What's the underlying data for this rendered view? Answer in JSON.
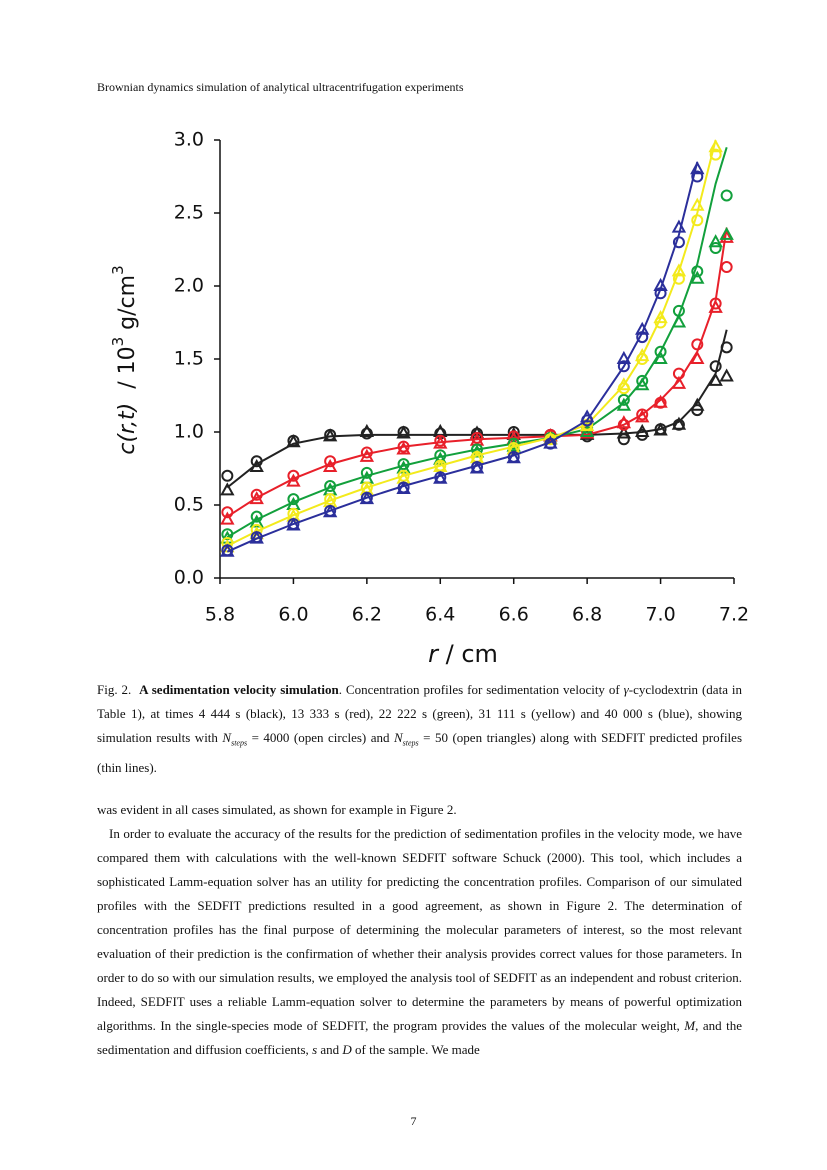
{
  "header": "Brownian dynamics simulation of analytical ultracentrifugation experiments",
  "chart_data": {
    "type": "line",
    "x_label": [
      "r",
      " / cm"
    ],
    "y_label": [
      "c(r,t)",
      "  / 10",
      "3",
      " g/cm",
      "3"
    ],
    "x": [
      5.82,
      5.9,
      6.0,
      6.1,
      6.2,
      6.3,
      6.4,
      6.5,
      6.6,
      6.7,
      6.8,
      6.9,
      6.95,
      7.0,
      7.05,
      7.1,
      7.15,
      7.18
    ],
    "xlim": [
      5.8,
      7.2
    ],
    "xticks": [
      5.8,
      {
        "value": 6.0,
        "label": "6.0"
      },
      6.2,
      6.4,
      6.6,
      6.8,
      {
        "value": 7.0,
        "label": "7.0"
      },
      7.2
    ],
    "ylim": [
      0,
      3
    ],
    "yticks": [
      {
        "value": 0,
        "label": "0.0"
      },
      0.5,
      {
        "value": 1,
        "label": "1.0"
      },
      1.5,
      {
        "value": 2,
        "label": "2.0"
      },
      2.5,
      {
        "value": 3,
        "label": "3.0"
      }
    ],
    "series": [
      {
        "color": "#222222",
        "marker": "none",
        "values": [
          0.62,
          0.78,
          0.92,
          0.97,
          0.98,
          0.98,
          0.98,
          0.98,
          0.98,
          0.98,
          0.98,
          0.99,
          1.0,
          1.02,
          1.07,
          1.2,
          1.4,
          1.7
        ]
      },
      {
        "color": "#222222",
        "marker": "circle",
        "values": [
          0.7,
          0.8,
          0.94,
          0.98,
          0.99,
          1.0,
          0.99,
          0.99,
          1.0,
          0.98,
          0.97,
          0.95,
          0.98,
          1.02,
          1.05,
          1.15,
          1.45,
          1.58
        ]
      },
      {
        "color": "#222222",
        "marker": "triangle",
        "values": [
          0.6,
          0.76,
          0.93,
          0.97,
          1.0,
          0.99,
          1.0,
          0.99,
          0.98,
          0.97,
          0.98,
          0.99,
          1.0,
          1.01,
          1.05,
          1.18,
          1.35,
          1.38
        ]
      },
      {
        "color": "#e8202a",
        "marker": "none",
        "values": [
          0.42,
          0.55,
          0.68,
          0.78,
          0.85,
          0.9,
          0.93,
          0.95,
          0.96,
          0.97,
          0.98,
          1.05,
          1.12,
          1.22,
          1.35,
          1.55,
          1.9,
          2.4
        ]
      },
      {
        "color": "#e8202a",
        "marker": "circle",
        "values": [
          0.45,
          0.57,
          0.7,
          0.8,
          0.86,
          0.9,
          0.94,
          0.96,
          0.97,
          0.98,
          1.0,
          1.05,
          1.12,
          1.2,
          1.4,
          1.6,
          1.88,
          2.13
        ]
      },
      {
        "color": "#e8202a",
        "marker": "triangle",
        "values": [
          0.4,
          0.54,
          0.66,
          0.76,
          0.83,
          0.88,
          0.92,
          0.94,
          0.95,
          0.97,
          0.99,
          1.06,
          1.1,
          1.2,
          1.33,
          1.5,
          1.85,
          2.33
        ]
      },
      {
        "color": "#12a03c",
        "marker": "none",
        "values": [
          0.28,
          0.4,
          0.52,
          0.62,
          0.7,
          0.77,
          0.83,
          0.88,
          0.92,
          0.96,
          1.02,
          1.2,
          1.35,
          1.55,
          1.8,
          2.15,
          2.7,
          2.95
        ]
      },
      {
        "color": "#12a03c",
        "marker": "circle",
        "values": [
          0.3,
          0.42,
          0.54,
          0.63,
          0.72,
          0.78,
          0.84,
          0.88,
          0.92,
          0.96,
          1.03,
          1.22,
          1.35,
          1.55,
          1.83,
          2.1,
          2.26,
          2.62
        ]
      },
      {
        "color": "#12a03c",
        "marker": "triangle",
        "values": [
          0.27,
          0.38,
          0.5,
          0.6,
          0.68,
          0.75,
          0.81,
          0.86,
          0.9,
          0.95,
          1.0,
          1.18,
          1.32,
          1.5,
          1.75,
          2.05,
          2.3,
          2.35
        ]
      },
      {
        "color": "#f3ea1c",
        "marker": "none",
        "values": [
          0.22,
          0.32,
          0.43,
          0.53,
          0.62,
          0.7,
          0.77,
          0.84,
          0.9,
          0.96,
          1.05,
          1.32,
          1.52,
          1.78,
          2.1,
          2.5,
          3.0,
          null
        ]
      },
      {
        "color": "#f3ea1c",
        "marker": "circle",
        "values": [
          0.24,
          0.33,
          0.44,
          0.54,
          0.62,
          0.7,
          0.77,
          0.83,
          0.89,
          0.95,
          1.05,
          1.3,
          1.5,
          1.75,
          2.05,
          2.45,
          2.9,
          null
        ]
      },
      {
        "color": "#f3ea1c",
        "marker": "triangle",
        "values": [
          0.21,
          0.3,
          0.42,
          0.52,
          0.6,
          0.68,
          0.76,
          0.82,
          0.88,
          0.95,
          1.04,
          1.32,
          1.52,
          1.78,
          2.1,
          2.55,
          2.95,
          null
        ]
      },
      {
        "color": "#2b2f9b",
        "marker": "none",
        "values": [
          0.18,
          0.27,
          0.37,
          0.46,
          0.55,
          0.63,
          0.7,
          0.77,
          0.84,
          0.93,
          1.08,
          1.45,
          1.68,
          1.98,
          2.35,
          2.85,
          null,
          null
        ]
      },
      {
        "color": "#2b2f9b",
        "marker": "circle",
        "values": [
          0.19,
          0.28,
          0.37,
          0.46,
          0.55,
          0.62,
          0.69,
          0.76,
          0.83,
          0.92,
          1.08,
          1.45,
          1.65,
          1.95,
          2.3,
          2.75,
          null,
          null
        ]
      },
      {
        "color": "#2b2f9b",
        "marker": "triangle",
        "values": [
          0.18,
          0.27,
          0.36,
          0.45,
          0.54,
          0.61,
          0.68,
          0.75,
          0.82,
          0.92,
          1.1,
          1.5,
          1.7,
          2.0,
          2.4,
          2.8,
          null,
          null
        ]
      }
    ]
  },
  "caption": [
    "Fig. 2.",
    "A sedimentation velocity simulation",
    ".  Concentration profiles for sedimentation velocity of ",
    "γ",
    "-cyclodextrin (data in Table 1), at times 4 444 s (black), 13 333 s (red), 22 222 s (green), 31 111 s (yellow) and 40 000 s (blue), showing simulation results with ",
    "N",
    "steps",
    " = 4000 (open circles) and ",
    "N",
    "steps",
    " = 50 (open triangles) along with SEDFIT predicted profiles (thin lines)."
  ],
  "body": [
    [
      "was evident in all cases simulated, as shown for example in Figure 2."
    ],
    [
      "In order to evaluate the accuracy of the results for the prediction of sedimentation profiles in the velocity mode, we have compared them with calculations with the well-known SEDFIT software Schuck (2000).  This tool, which includes a sophisticated Lamm-equation solver has an utility for predicting the concentration profiles.  Comparison of our simulated profiles with the SEDFIT predictions resulted in a good agreement, as shown in Figure 2.  The determination of concentration profiles has the final purpose of determining the molecular parameters of interest, so the most relevant evaluation of their prediction is the confirmation of whether their analysis provides correct values for those parameters.  In order to do so with our simulation results, we employed the analysis tool of SEDFIT as an independent and robust criterion. Indeed, SEDFIT uses a reliable Lamm-equation solver to determine the parameters by means of powerful optimization algorithms.  In the single-species mode of SEDFIT, the program provides the values of the molecular weight, ",
      "M",
      ", and the sedimentation and diffusion coefficients, ",
      "s",
      " and ",
      "D",
      " of the sample. We made"
    ]
  ],
  "page_number": "7"
}
